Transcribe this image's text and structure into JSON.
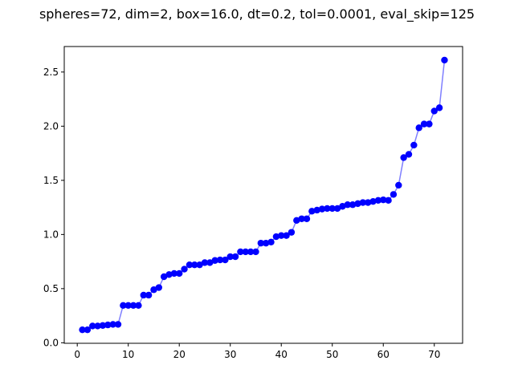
{
  "chart_data": {
    "type": "line",
    "title": "spheres=72, dim=2, box=16.0, dt=0.2, tol=0.0001, eval_skip=125",
    "xlabel": "",
    "ylabel": "",
    "xlim": [
      -2.55,
      75.55
    ],
    "ylim": [
      -0.0046,
      2.7356
    ],
    "xticks": [
      0,
      10,
      20,
      30,
      40,
      50,
      60,
      70
    ],
    "yticks": [
      0.0,
      0.5,
      1.0,
      1.5,
      2.0,
      2.5
    ],
    "ytick_labels": [
      "0.0",
      "0.5",
      "1.0",
      "1.5",
      "2.0",
      "2.5"
    ],
    "grid": false,
    "legend": "none",
    "series": [
      {
        "line_color": "#7f7fff",
        "marker_color": "#0000ff",
        "marker": "circle",
        "x": [
          1,
          2,
          3,
          4,
          5,
          6,
          7,
          8,
          9,
          10,
          11,
          12,
          13,
          14,
          15,
          16,
          17,
          18,
          19,
          20,
          21,
          22,
          23,
          24,
          25,
          26,
          27,
          28,
          29,
          30,
          31,
          32,
          33,
          34,
          35,
          36,
          37,
          38,
          39,
          40,
          41,
          42,
          43,
          44,
          45,
          46,
          47,
          48,
          49,
          50,
          51,
          52,
          53,
          54,
          55,
          56,
          57,
          58,
          59,
          60,
          61,
          62,
          63,
          64,
          65,
          66,
          67,
          68,
          69,
          70,
          71,
          72
        ],
        "y": [
          0.12,
          0.12,
          0.155,
          0.155,
          0.16,
          0.165,
          0.17,
          0.17,
          0.345,
          0.345,
          0.345,
          0.345,
          0.44,
          0.44,
          0.49,
          0.51,
          0.61,
          0.63,
          0.64,
          0.64,
          0.68,
          0.72,
          0.72,
          0.72,
          0.74,
          0.74,
          0.76,
          0.765,
          0.765,
          0.795,
          0.795,
          0.84,
          0.84,
          0.84,
          0.84,
          0.92,
          0.92,
          0.93,
          0.98,
          0.99,
          0.99,
          1.02,
          1.13,
          1.145,
          1.145,
          1.215,
          1.225,
          1.235,
          1.24,
          1.24,
          1.24,
          1.26,
          1.275,
          1.275,
          1.285,
          1.295,
          1.295,
          1.305,
          1.315,
          1.32,
          1.315,
          1.37,
          1.455,
          1.71,
          1.74,
          1.825,
          1.985,
          2.02,
          2.02,
          2.14,
          2.17,
          2.61
        ]
      }
    ]
  }
}
